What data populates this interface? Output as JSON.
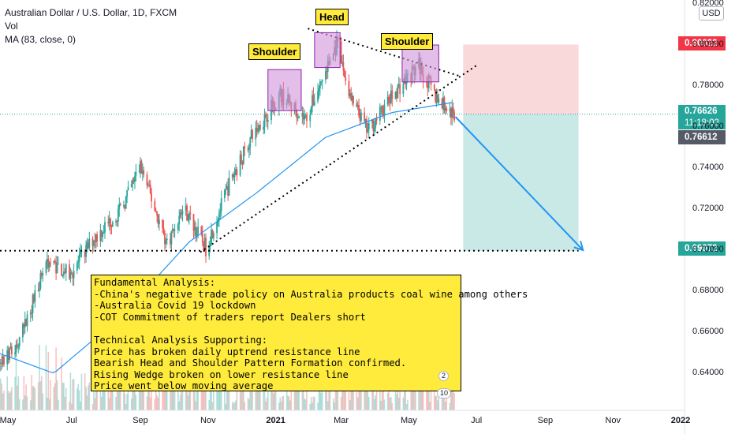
{
  "legend": {
    "title": "Australian Dollar / U.S. Dollar, 1D, FXCM",
    "vol": "Vol",
    "ma": "MA (83, close, 0)"
  },
  "currency": "USD",
  "annotations": {
    "shoulder_left": "Shoulder",
    "head": "Head",
    "shoulder_right": "Shoulder"
  },
  "note_lines": [
    "Fundamental Analysis:",
    "-China's negative trade policy on Australia products coal wine among others",
    "-Australia Covid 19 lockdown",
    "-COT Commitment of traders report Dealers short",
    "",
    "Technical Analysis Supporting:",
    "Price has broken daily uptrend resistance line",
    "Bearish Head and Shoulder Pattern Formation confirmed.",
    "Rising Wedge broken on lower resistance line",
    "Price went below moving average"
  ],
  "price_labels": {
    "target_top": "0.80022",
    "current": "0.76626",
    "countdown": "11:18:02",
    "prev": "0.76612",
    "target_bottom": "0.69972"
  },
  "event_badges": [
    "2",
    "10"
  ],
  "colors": {
    "up": "#26a69a",
    "down": "#ef5350",
    "ma": "#2196f3",
    "stop_zone": "#f8c9cc",
    "target_zone": "#b2dfdb",
    "annotation_bg": "#ffeb3b",
    "pattern_box": "#ce93d8",
    "arrow": "#2196f3",
    "label_red": "#f23645",
    "label_teal": "#26a69a",
    "label_dark": "#555a66"
  },
  "chart_data": {
    "type": "candlestick",
    "symbol": "AUD/USD",
    "timeframe": "1D",
    "y_ticks": [
      "0.82000",
      "0.80000",
      "0.78000",
      "0.76000",
      "0.74000",
      "0.72000",
      "0.70000",
      "0.68000",
      "0.66000",
      "0.64000"
    ],
    "x_ticks": [
      "May",
      "Jul",
      "Sep",
      "Nov",
      "2021",
      "Mar",
      "May",
      "Jul",
      "Sep",
      "Nov",
      "2022"
    ],
    "ylim": [
      0.625,
      0.823
    ],
    "close_series": [
      {
        "date": "2020-04-15",
        "close": 0.635
      },
      {
        "date": "2020-05-15",
        "close": 0.655
      },
      {
        "date": "2020-06-08",
        "close": 0.695
      },
      {
        "date": "2020-06-30",
        "close": 0.688
      },
      {
        "date": "2020-07-20",
        "close": 0.705
      },
      {
        "date": "2020-08-15",
        "close": 0.72
      },
      {
        "date": "2020-09-01",
        "close": 0.741
      },
      {
        "date": "2020-09-25",
        "close": 0.703
      },
      {
        "date": "2020-10-10",
        "close": 0.721
      },
      {
        "date": "2020-10-30",
        "close": 0.701
      },
      {
        "date": "2020-11-20",
        "close": 0.732
      },
      {
        "date": "2020-12-10",
        "close": 0.755
      },
      {
        "date": "2021-01-05",
        "close": 0.776
      },
      {
        "date": "2021-01-28",
        "close": 0.764
      },
      {
        "date": "2021-02-25",
        "close": 0.8
      },
      {
        "date": "2021-03-10",
        "close": 0.773
      },
      {
        "date": "2021-03-25",
        "close": 0.758
      },
      {
        "date": "2021-04-20",
        "close": 0.778
      },
      {
        "date": "2021-05-10",
        "close": 0.79
      },
      {
        "date": "2021-05-25",
        "close": 0.775
      },
      {
        "date": "2021-06-10",
        "close": 0.766
      }
    ],
    "ma_series": [
      {
        "date": "2020-04-15",
        "value": 0.652
      },
      {
        "date": "2020-06-15",
        "value": 0.64
      },
      {
        "date": "2020-08-15",
        "value": 0.668
      },
      {
        "date": "2020-10-15",
        "value": 0.704
      },
      {
        "date": "2020-12-15",
        "value": 0.728
      },
      {
        "date": "2021-02-15",
        "value": 0.755
      },
      {
        "date": "2021-04-15",
        "value": 0.767
      },
      {
        "date": "2021-06-10",
        "value": 0.772
      }
    ],
    "levels": {
      "support": 0.69972,
      "stop_loss": 0.80022,
      "entry": 0.76626
    },
    "projection": {
      "from": {
        "date": "2021-06-12",
        "price": 0.765
      },
      "to": {
        "date": "2021-10-05",
        "price": 0.7
      }
    },
    "trendlines": [
      {
        "name": "uptrend support",
        "from": {
          "date": "2020-10-25",
          "price": 0.699
        },
        "to": {
          "date": "2021-07-01",
          "price": 0.79
        }
      },
      {
        "name": "neckline resistance",
        "from": {
          "date": "2021-01-30",
          "price": 0.808
        },
        "to": {
          "date": "2021-06-15",
          "price": 0.785
        }
      }
    ],
    "grid": false
  }
}
